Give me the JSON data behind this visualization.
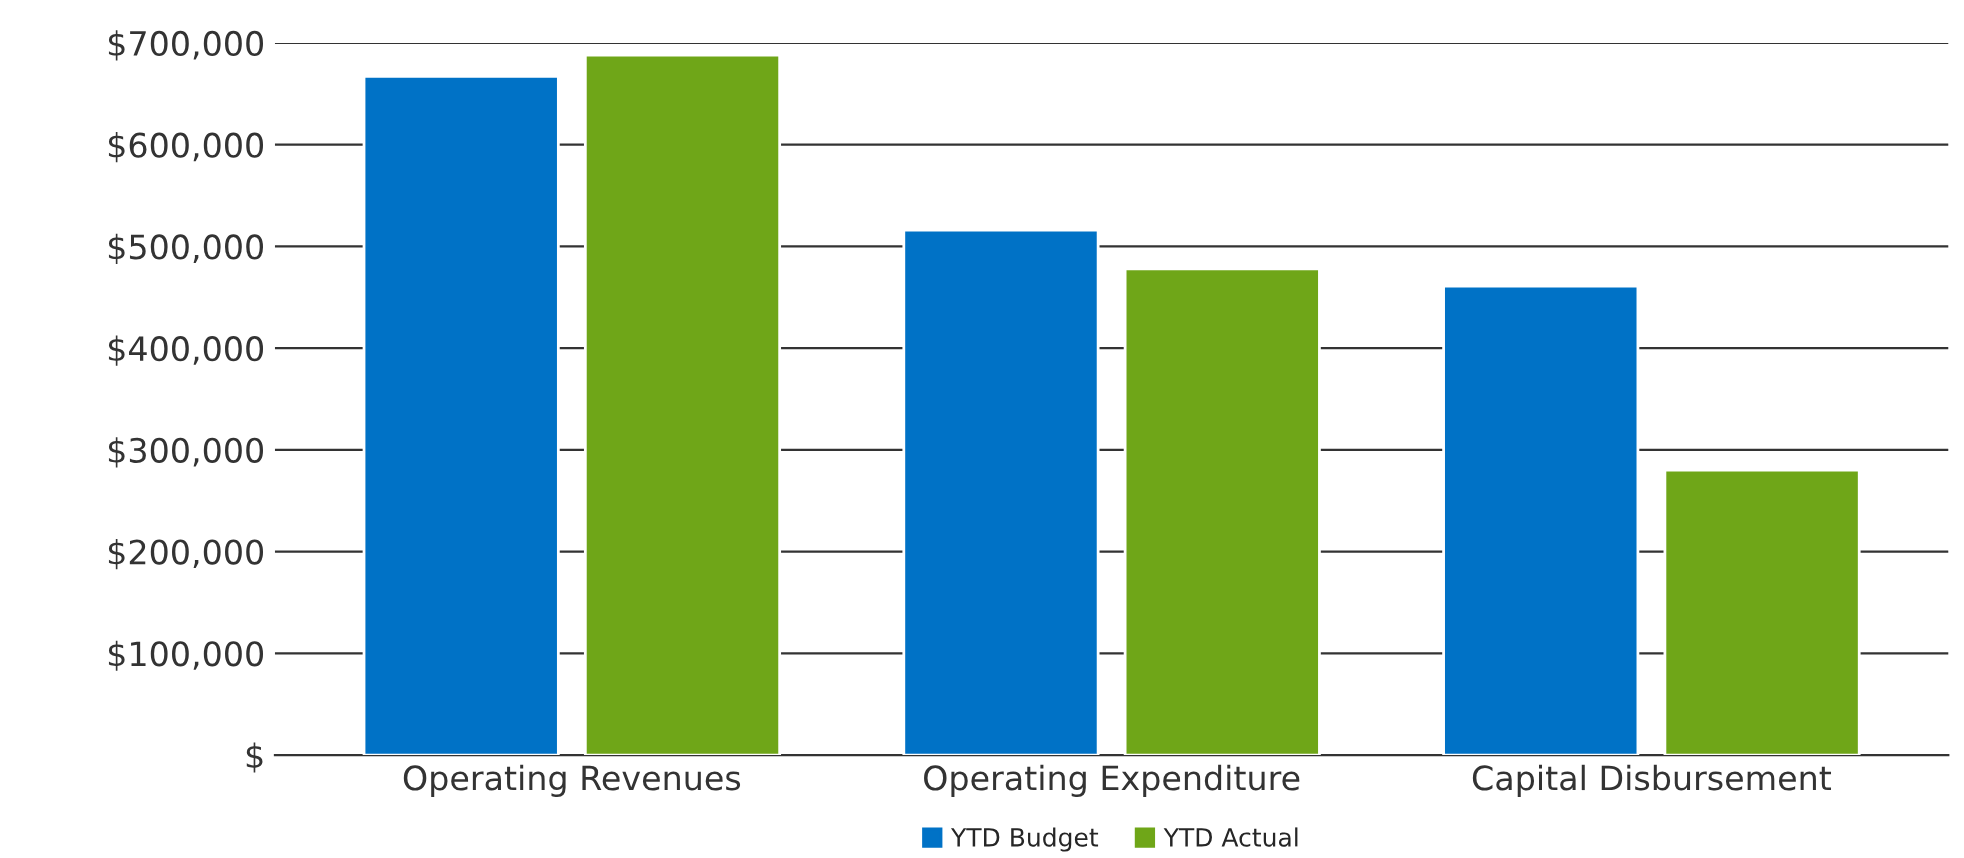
{
  "chart_data": {
    "type": "bar",
    "categories": [
      "Operating Revenues",
      "Operating Expenditure",
      "Capital Disbursement"
    ],
    "series": [
      {
        "name": "YTD Budget",
        "color": "#0072c6",
        "values": [
          667000,
          516000,
          461000
        ]
      },
      {
        "name": "YTD Actual",
        "color": "#6fa618",
        "values": [
          688000,
          478000,
          280000
        ]
      }
    ],
    "ylim": [
      0,
      700000
    ],
    "yticks": [
      {
        "value": 0,
        "label": "$"
      },
      {
        "value": 100000,
        "label": "$100,000"
      },
      {
        "value": 200000,
        "label": "$200,000"
      },
      {
        "value": 300000,
        "label": "$300,000"
      },
      {
        "value": 400000,
        "label": "$400,000"
      },
      {
        "value": 500000,
        "label": "$500,000"
      },
      {
        "value": 600000,
        "label": "$600,000"
      },
      {
        "value": 700000,
        "label": "$700,000"
      }
    ],
    "grid": "y",
    "legend": "bottom"
  }
}
